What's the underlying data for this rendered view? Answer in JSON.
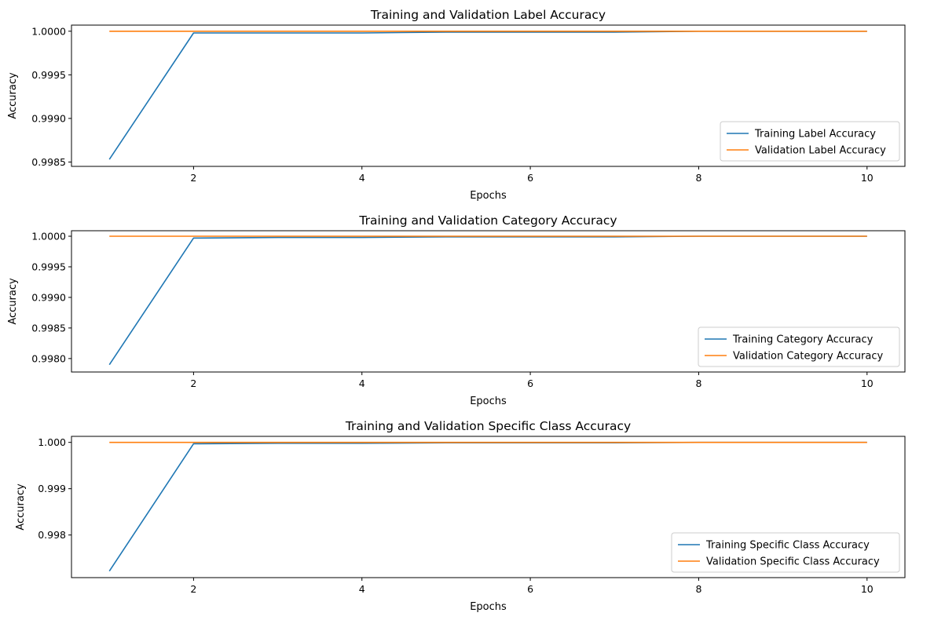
{
  "chart_data": [
    {
      "type": "line",
      "title": "Training and Validation Label Accuracy",
      "xlabel": "Epochs",
      "ylabel": "Accuracy",
      "xlim": [
        0.55,
        10.45
      ],
      "ylim": [
        0.99845,
        1.00007
      ],
      "xticks": [
        2,
        4,
        6,
        8,
        10
      ],
      "yticks": [
        0.9985,
        0.999,
        0.9995,
        1.0
      ],
      "ytick_labels": [
        "0.9985",
        "0.9990",
        "0.9995",
        "1.0000"
      ],
      "grid": false,
      "legend_position": "lower-right",
      "x": [
        1,
        2,
        3,
        4,
        5,
        6,
        7,
        8,
        9,
        10
      ],
      "series": [
        {
          "name": "Training Label Accuracy",
          "color": "#1f77b4",
          "values": [
            0.99853,
            0.99998,
            0.99998,
            0.99998,
            0.99999,
            0.99999,
            0.99999,
            1.0,
            1.0,
            1.0
          ]
        },
        {
          "name": "Validation Label Accuracy",
          "color": "#ff7f0e",
          "values": [
            1.0,
            1.0,
            1.0,
            1.0,
            1.0,
            1.0,
            1.0,
            1.0,
            1.0,
            1.0
          ]
        }
      ]
    },
    {
      "type": "line",
      "title": "Training and Validation Category Accuracy",
      "xlabel": "Epochs",
      "ylabel": "Accuracy",
      "xlim": [
        0.55,
        10.45
      ],
      "ylim": [
        0.99778,
        1.00009
      ],
      "xticks": [
        2,
        4,
        6,
        8,
        10
      ],
      "yticks": [
        0.998,
        0.9985,
        0.999,
        0.9995,
        1.0
      ],
      "ytick_labels": [
        "0.9980",
        "0.9985",
        "0.9990",
        "0.9995",
        "1.0000"
      ],
      "grid": false,
      "legend_position": "lower-right",
      "x": [
        1,
        2,
        3,
        4,
        5,
        6,
        7,
        8,
        9,
        10
      ],
      "series": [
        {
          "name": "Training Category Accuracy",
          "color": "#1f77b4",
          "values": [
            0.9979,
            0.99997,
            0.99998,
            0.99998,
            0.99999,
            0.99999,
            0.99999,
            1.0,
            1.0,
            1.0
          ]
        },
        {
          "name": "Validation Category Accuracy",
          "color": "#ff7f0e",
          "values": [
            1.0,
            1.0,
            1.0,
            1.0,
            1.0,
            1.0,
            1.0,
            1.0,
            1.0,
            1.0
          ]
        }
      ]
    },
    {
      "type": "line",
      "title": "Training and Validation Specific Class Accuracy",
      "xlabel": "Epochs",
      "ylabel": "Accuracy",
      "xlim": [
        0.55,
        10.45
      ],
      "ylim": [
        0.99708,
        1.00013
      ],
      "xticks": [
        2,
        4,
        6,
        8,
        10
      ],
      "yticks": [
        0.998,
        0.999,
        1.0
      ],
      "ytick_labels": [
        "0.998",
        "0.999",
        "1.000"
      ],
      "grid": false,
      "legend_position": "lower-right",
      "x": [
        1,
        2,
        3,
        4,
        5,
        6,
        7,
        8,
        9,
        10
      ],
      "series": [
        {
          "name": "Training Specific Class Accuracy",
          "color": "#1f77b4",
          "values": [
            0.99722,
            0.99997,
            0.99998,
            0.99998,
            0.99999,
            0.99999,
            0.99999,
            1.0,
            1.0,
            1.0
          ]
        },
        {
          "name": "Validation Specific Class Accuracy",
          "color": "#ff7f0e",
          "values": [
            1.0,
            1.0,
            1.0,
            1.0,
            1.0,
            1.0,
            1.0,
            1.0,
            1.0,
            1.0
          ]
        }
      ]
    }
  ]
}
